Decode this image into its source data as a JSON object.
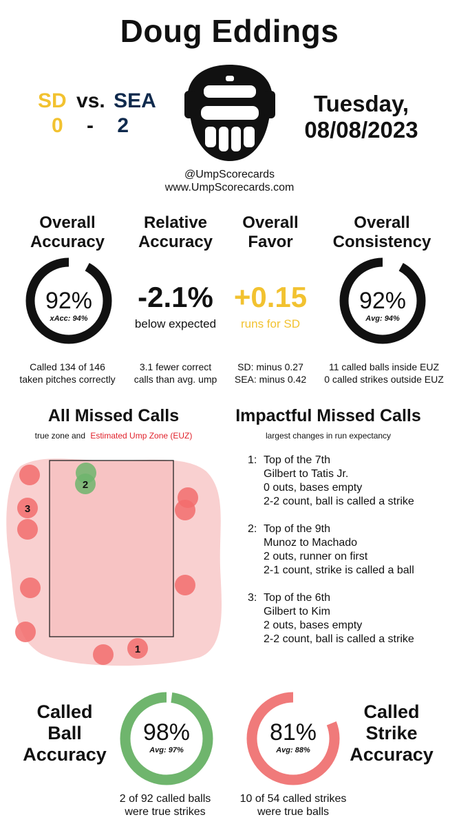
{
  "header": {
    "umpire_name": "Doug Eddings",
    "away_team": "SD",
    "vs_label": "vs.",
    "home_team": "SEA",
    "away_score": "0",
    "score_sep": "-",
    "home_score": "2",
    "day": "Tuesday,",
    "date": "08/08/2023",
    "handle": "@UmpScorecards",
    "website": "www.UmpScorecards.com"
  },
  "colors": {
    "sd_gold": "#f2c230",
    "sea_navy": "#0f2a4d",
    "miss_red": "#f26d6d",
    "green": "#6fb56d",
    "euz_fill": "#f9d0d0"
  },
  "stats": {
    "overall_accuracy": {
      "head1": "Overall",
      "head2": "Accuracy",
      "pct": "92%",
      "ring_fraction": 0.92,
      "sub": "xAcc: 94%",
      "note1": "Called 134 of 146",
      "note2": "taken pitches correctly"
    },
    "relative_accuracy": {
      "head1": "Relative",
      "head2": "Accuracy",
      "value": "-2.1%",
      "sub": "below expected",
      "note1": "3.1 fewer correct",
      "note2": "calls than avg. ump"
    },
    "overall_favor": {
      "head1": "Overall",
      "head2": "Favor",
      "value": "+0.15",
      "sub": "runs for SD",
      "note1": "SD: minus 0.27",
      "note2": "SEA: minus 0.42"
    },
    "overall_consistency": {
      "head1": "Overall",
      "head2": "Consistency",
      "pct": "92%",
      "ring_fraction": 0.92,
      "sub": "Avg: 94%",
      "note1": "11 called balls inside EUZ",
      "note2": "0 called strikes outside EUZ"
    }
  },
  "missed_calls": {
    "title": "All Missed Calls",
    "subtitle_prefix": "true zone and",
    "subtitle_euz": "Estimated Ump Zone (EUZ)",
    "marker_labels": [
      "1",
      "2",
      "3"
    ]
  },
  "impactful": {
    "title": "Impactful Missed Calls",
    "subtitle": "largest changes in run expectancy",
    "items": [
      {
        "num": "1:",
        "inning": "Top of the 7th",
        "matchup": "Gilbert to Tatis Jr.",
        "situation": "0 outs, bases empty",
        "call": "2-2 count, ball is called a strike"
      },
      {
        "num": "2:",
        "inning": "Top of the 9th",
        "matchup": "Munoz to Machado",
        "situation": "2 outs, runner on first",
        "call": "2-1 count, strike is called a ball"
      },
      {
        "num": "3:",
        "inning": "Top of the 6th",
        "matchup": "Gilbert to Kim",
        "situation": "2 outs, bases empty",
        "call": "2-2 count, ball is called a strike"
      }
    ]
  },
  "bottom": {
    "ball": {
      "head1": "Called",
      "head2": "Ball",
      "head3": "Accuracy",
      "pct": "98%",
      "ring_fraction": 0.98,
      "avg": "Avg: 97%",
      "note1": "2 of 92 called balls",
      "note2": "were true strikes"
    },
    "strike": {
      "head1": "Called",
      "head2": "Strike",
      "head3": "Accuracy",
      "pct": "81%",
      "ring_fraction": 0.81,
      "avg": "Avg: 88%",
      "note1": "10 of 54 called strikes",
      "note2": "were true balls"
    }
  }
}
